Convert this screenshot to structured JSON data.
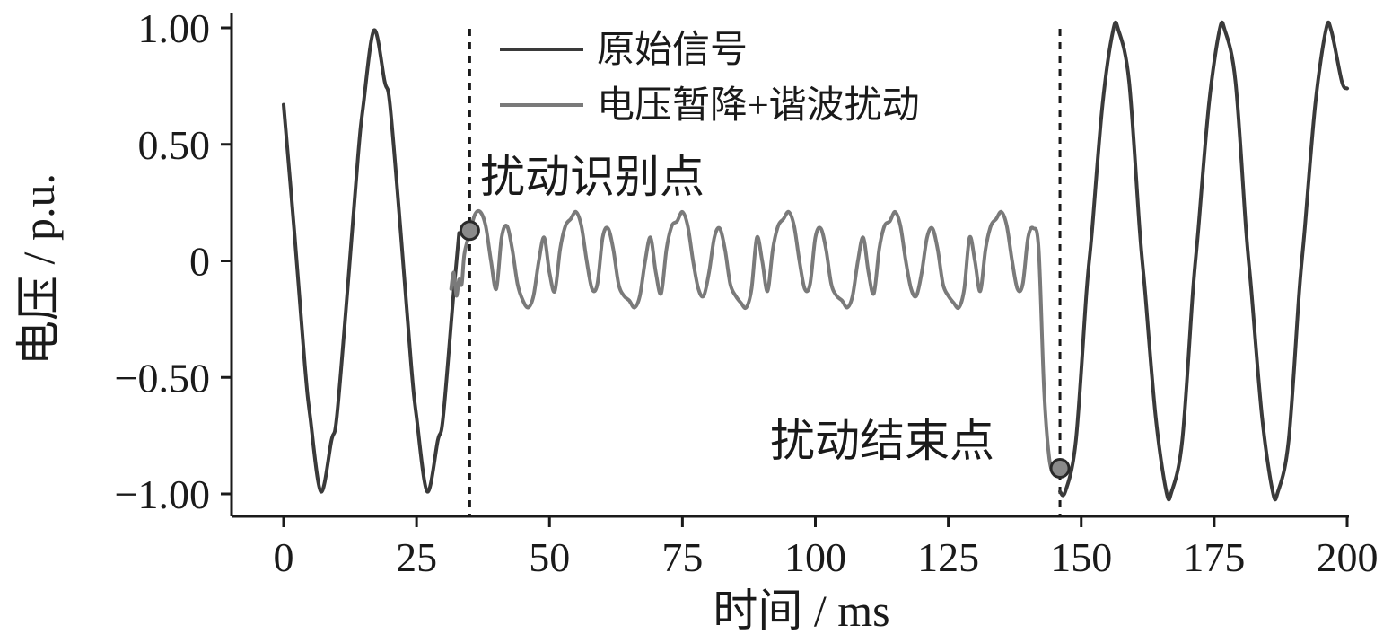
{
  "chart_data": {
    "type": "line",
    "title": "",
    "xlabel": "时间 / ms",
    "ylabel": "电压 / p.u.",
    "xlim": [
      -10,
      200
    ],
    "ylim": [
      -1.1,
      1.05
    ],
    "x_ticks": [
      0,
      25,
      50,
      75,
      100,
      125,
      150,
      175,
      200
    ],
    "x_tick_labels": [
      "0",
      "25",
      "50",
      "75",
      "100",
      "125",
      "150",
      "175",
      "200"
    ],
    "y_ticks": [
      1.0,
      0.5,
      0,
      -0.5,
      -1.0
    ],
    "y_tick_labels": [
      "1.00",
      "0.50",
      "0",
      "−0.50",
      "−1.00"
    ],
    "grid": false,
    "legend_position": "top-center",
    "series": [
      {
        "name": "原始信号",
        "color": "#3a3a3a",
        "x": [
          0,
          2,
          4,
          5,
          7,
          9,
          10,
          12,
          14,
          15,
          17,
          19,
          20,
          22,
          24,
          25,
          27,
          29,
          30,
          32,
          33,
          146,
          147,
          149,
          151,
          152,
          154,
          156,
          157,
          159,
          161,
          162,
          164,
          166,
          167,
          169,
          171,
          172,
          174,
          176,
          177,
          179,
          181,
          182,
          184,
          186,
          187,
          189,
          191,
          192,
          194,
          196,
          197,
          199,
          200
        ],
        "y": [
          0.67,
          0.13,
          -0.45,
          -0.67,
          -0.99,
          -0.77,
          -0.67,
          -0.13,
          0.45,
          0.67,
          0.99,
          0.77,
          0.67,
          0.13,
          -0.45,
          -0.67,
          -0.99,
          -0.77,
          -0.67,
          -0.13,
          0.12,
          -0.99,
          -0.99,
          -0.77,
          -0.13,
          0.12,
          0.67,
          0.99,
          0.99,
          0.77,
          0.13,
          -0.13,
          -0.67,
          -0.99,
          -0.99,
          -0.77,
          -0.13,
          0.13,
          0.67,
          0.99,
          0.99,
          0.77,
          0.13,
          -0.13,
          -0.67,
          -0.99,
          -0.99,
          -0.77,
          -0.13,
          0.13,
          0.67,
          0.99,
          0.99,
          0.77,
          0.74
        ]
      },
      {
        "name": "电压暂降+谐波扰动",
        "color": "#7a7a7a",
        "x": [
          31.5,
          32,
          32.5,
          33,
          33.5,
          34,
          35,
          36,
          37,
          38,
          39,
          40,
          41,
          42,
          43,
          44,
          45,
          46,
          47,
          48,
          49,
          50,
          51,
          52,
          53,
          54,
          55,
          56,
          57,
          58,
          59,
          60,
          61,
          62,
          63,
          64,
          65,
          66,
          67,
          68,
          69,
          70,
          71,
          72,
          73,
          74,
          75,
          76,
          77,
          78,
          79,
          80,
          81,
          82,
          83,
          84,
          85,
          86,
          87,
          88,
          89,
          90,
          91,
          92,
          93,
          94,
          95,
          96,
          97,
          98,
          99,
          100,
          101,
          102,
          103,
          104,
          105,
          106,
          107,
          108,
          109,
          110,
          111,
          112,
          113,
          114,
          115,
          116,
          117,
          118,
          119,
          120,
          121,
          122,
          123,
          124,
          125,
          126,
          127,
          128,
          129,
          130,
          131,
          132,
          133,
          134,
          135,
          136,
          137,
          138,
          139,
          140,
          141,
          142,
          143,
          144,
          145
        ],
        "y": [
          -0.12,
          -0.05,
          -0.15,
          -0.08,
          -0.1,
          0.03,
          0.12,
          0.2,
          0.21,
          0.15,
          0.0,
          -0.12,
          0.1,
          0.15,
          0.05,
          -0.1,
          -0.17,
          -0.2,
          -0.15,
          0.0,
          0.1,
          -0.05,
          -0.13,
          0.05,
          0.15,
          0.18,
          0.21,
          0.15,
          0.0,
          -0.12,
          -0.1,
          0.1,
          0.14,
          0.05,
          -0.1,
          -0.15,
          -0.17,
          -0.2,
          -0.15,
          0.0,
          0.1,
          -0.05,
          -0.14,
          0.05,
          0.15,
          0.17,
          0.21,
          0.15,
          0.0,
          -0.12,
          -0.15,
          -0.05,
          0.1,
          0.14,
          0.05,
          -0.1,
          -0.15,
          -0.18,
          -0.2,
          -0.12,
          0.1,
          0.0,
          -0.13,
          0.05,
          0.15,
          0.18,
          0.21,
          0.15,
          0.0,
          -0.12,
          -0.1,
          0.1,
          0.14,
          0.05,
          -0.1,
          -0.15,
          -0.17,
          -0.2,
          -0.15,
          0.0,
          0.1,
          -0.05,
          -0.14,
          0.05,
          0.15,
          0.17,
          0.21,
          0.15,
          0.0,
          -0.12,
          -0.15,
          -0.05,
          0.1,
          0.14,
          0.05,
          -0.1,
          -0.15,
          -0.18,
          -0.2,
          -0.12,
          0.1,
          0.0,
          -0.13,
          0.05,
          0.15,
          0.18,
          0.21,
          0.15,
          0.0,
          -0.12,
          -0.1,
          0.1,
          0.14,
          0.05,
          -0.55,
          -0.85,
          -0.92
        ]
      }
    ],
    "vlines": [
      {
        "x": 35,
        "style": "dashed"
      },
      {
        "x": 146,
        "style": "dashed"
      }
    ],
    "annotations": [
      {
        "text": "扰动识别点",
        "x": 35,
        "y": 0.13
      },
      {
        "text": "扰动结束点",
        "x": 146,
        "y": -0.89
      }
    ]
  }
}
